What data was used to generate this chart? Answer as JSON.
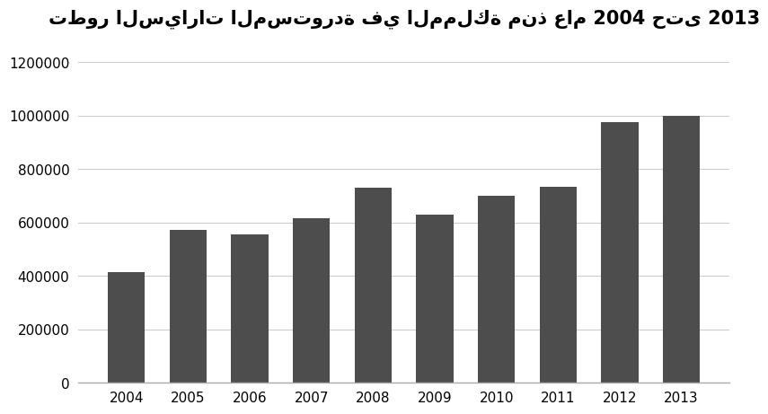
{
  "title": "تطور السيارات المستوردة في المملكة منذ عام 2004 حتى 2013",
  "categories": [
    "2004",
    "2005",
    "2006",
    "2007",
    "2008",
    "2009",
    "2010",
    "2011",
    "2012",
    "2013"
  ],
  "values": [
    415000,
    572000,
    555000,
    617000,
    730000,
    630000,
    700000,
    735000,
    975000,
    1000000
  ],
  "bar_color": "#4d4d4d",
  "background_color": "#ffffff",
  "ylim": [
    0,
    1300000
  ],
  "yticks": [
    0,
    200000,
    400000,
    600000,
    800000,
    1000000,
    1200000
  ],
  "title_fontsize": 15,
  "tick_fontsize": 11,
  "grid_color": "#cccccc",
  "border_color": "#aaaaaa"
}
